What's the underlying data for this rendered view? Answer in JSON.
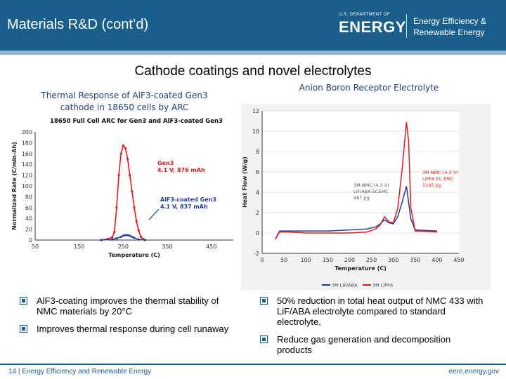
{
  "header": {
    "title": "Materials R&D (cont’d)",
    "doe_small": "U.S. DEPARTMENT OF",
    "doe_big": "ENERGY",
    "eere_line1": "Energy Efficiency &",
    "eere_line2": "Renewable Energy"
  },
  "section_title": "Cathode coatings and novel electrolytes",
  "left_caption": {
    "line1": "Thermal Response of AlF3-coated Gen3",
    "line2": "cathode in 18650 cells by ARC"
  },
  "right_caption": "Anion Boron Receptor Electrolyte",
  "bullets_left": [
    "AlF3-coating improves the thermal stability of NMC materials by 20°C",
    "Improves thermal response during cell runaway"
  ],
  "bullets_right": [
    "50% reduction in total heat output of NMC 433 with LiF/ABA electrolyte compared to standard electrolyte,",
    "Reduce gas generation and decomposition products"
  ],
  "footer": {
    "left": "14 | Energy Efficiency and Renewable Energy",
    "right": "eere.energy.gov"
  },
  "chart_data": [
    {
      "type": "line",
      "title": "18650 Full Cell ARC for Gen3 and AlF3-coated Gen3",
      "xlabel": "Temperature (C)",
      "ylabel": "Normalized Rate (C/min-Ah)",
      "xlim": [
        50,
        500
      ],
      "ylim": [
        0,
        200
      ],
      "xticks": [
        50,
        150,
        250,
        350,
        450
      ],
      "yticks": [
        0,
        20,
        40,
        60,
        80,
        100,
        120,
        140,
        160,
        180,
        200
      ],
      "series": [
        {
          "name": "Gen3",
          "annotation": "4.1 V, 876 mAh",
          "color": "#e31a1c",
          "x": [
            200,
            215,
            225,
            230,
            235,
            240,
            245,
            250,
            255,
            260,
            265,
            270,
            275,
            280,
            285,
            290,
            295,
            300
          ],
          "y": [
            0,
            2,
            5,
            15,
            60,
            120,
            160,
            175,
            170,
            150,
            120,
            90,
            60,
            35,
            18,
            6,
            2,
            0
          ]
        },
        {
          "name": "AlF3-coated Gen3",
          "annotation": "4.1 V, 837 mAh",
          "color": "#1f3f9a",
          "x": [
            200,
            225,
            235,
            245,
            250,
            255,
            260,
            265,
            270,
            275,
            285,
            300
          ],
          "y": [
            0,
            1,
            3,
            6,
            8,
            9,
            9,
            8,
            6,
            4,
            1,
            0
          ]
        }
      ]
    },
    {
      "type": "line",
      "xlabel": "Temperature (C)",
      "ylabel": "Heat Flow (W/g)",
      "xlim": [
        0,
        450
      ],
      "ylim": [
        -2,
        12
      ],
      "xticks": [
        0,
        50,
        100,
        150,
        200,
        250,
        300,
        350,
        400,
        450
      ],
      "yticks": [
        -2,
        0,
        2,
        4,
        6,
        8,
        10,
        12
      ],
      "annotations": [
        {
          "lines": [
            "3M NMC (4.3 V)",
            "LiPF6 EC:EMC",
            "1165 J/g"
          ],
          "color": "#e31a1c"
        },
        {
          "lines": [
            "3M NMC (4.3 V)",
            "LiF/ABA ECEMC",
            "987 J/g"
          ],
          "color": "#555555"
        }
      ],
      "series": [
        {
          "name": "3M LiF/ABA",
          "color": "#1f3f9a",
          "x": [
            30,
            40,
            60,
            100,
            150,
            200,
            240,
            260,
            270,
            280,
            290,
            300,
            310,
            320,
            330,
            340,
            350,
            400
          ],
          "y": [
            -0.6,
            0.2,
            0.2,
            0.2,
            0.2,
            0.3,
            0.4,
            0.6,
            0.9,
            1.3,
            1.0,
            0.9,
            1.6,
            3.0,
            4.6,
            1.4,
            0.3,
            0.2
          ]
        },
        {
          "name": "3M LiPF6",
          "color": "#e31a1c",
          "x": [
            30,
            40,
            60,
            100,
            150,
            200,
            240,
            260,
            270,
            280,
            290,
            300,
            310,
            320,
            330,
            335,
            340,
            350,
            400
          ],
          "y": [
            -0.6,
            0.1,
            0.1,
            0.0,
            0.0,
            0.0,
            0.1,
            0.4,
            0.8,
            1.6,
            1.1,
            1.0,
            2.4,
            6.2,
            10.9,
            9.0,
            2.5,
            0.2,
            0.1
          ]
        }
      ]
    }
  ]
}
